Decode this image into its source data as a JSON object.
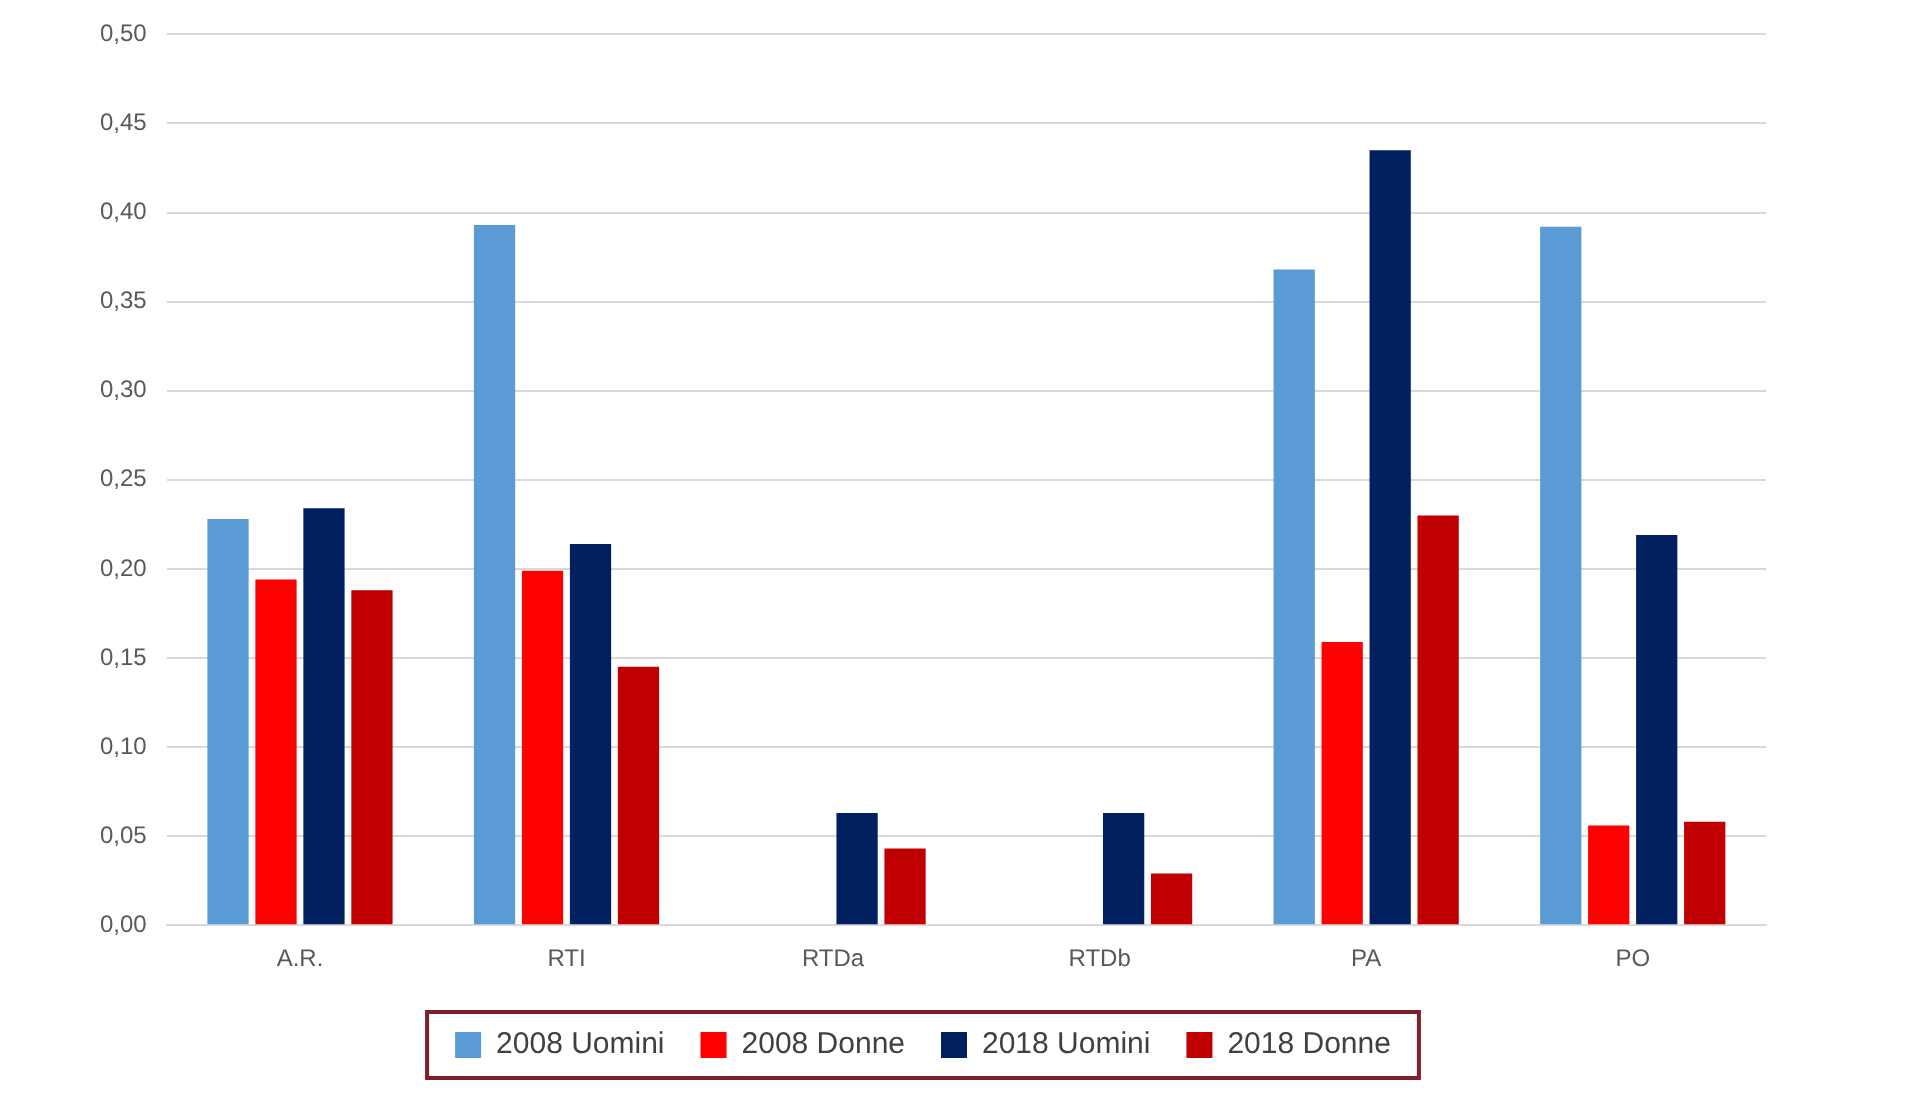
{
  "chart_data": {
    "type": "bar",
    "categories": [
      "A.R.",
      "RTI",
      "RTDa",
      "RTDb",
      "PA",
      "PO"
    ],
    "series": [
      {
        "name": "2008 Uomini",
        "color": "#5b9bd5",
        "values": [
          0.228,
          0.393,
          null,
          null,
          0.368,
          0.392
        ]
      },
      {
        "name": "2008 Donne",
        "color": "#ff0000",
        "values": [
          0.194,
          0.199,
          null,
          null,
          0.159,
          0.056
        ]
      },
      {
        "name": "2018 Uomini",
        "color": "#002060",
        "values": [
          0.234,
          0.214,
          0.063,
          0.063,
          0.435,
          0.219
        ]
      },
      {
        "name": "2018 Donne",
        "color": "#c00000",
        "values": [
          0.188,
          0.145,
          0.043,
          0.029,
          0.23,
          0.058
        ]
      }
    ],
    "ylim": [
      0,
      0.5
    ],
    "yticks": [
      {
        "value": 0,
        "label": "0,00"
      },
      {
        "value": 0.05,
        "label": "0,05"
      },
      {
        "value": 0.1,
        "label": "0,10"
      },
      {
        "value": 0.15,
        "label": "0,15"
      },
      {
        "value": 0.2,
        "label": "0,20"
      },
      {
        "value": 0.25,
        "label": "0,25"
      },
      {
        "value": 0.3,
        "label": "0,30"
      },
      {
        "value": 0.35,
        "label": "0,35"
      },
      {
        "value": 0.4,
        "label": "0,40"
      },
      {
        "value": 0.45,
        "label": "0,45"
      },
      {
        "value": 0.5,
        "label": "0,50"
      }
    ],
    "grid": "y",
    "legend": "bottom"
  }
}
